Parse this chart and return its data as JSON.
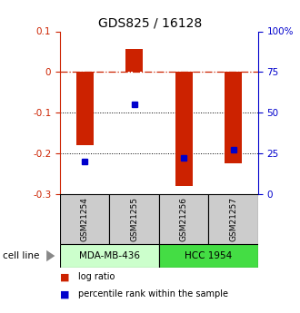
{
  "title": "GDS825 / 16128",
  "samples": [
    "GSM21254",
    "GSM21255",
    "GSM21256",
    "GSM21257"
  ],
  "log_ratios": [
    -0.18,
    0.057,
    -0.28,
    -0.225
  ],
  "percentile_ranks": [
    20,
    55,
    22,
    27
  ],
  "cell_lines": [
    {
      "name": "MDA-MB-436",
      "indices": [
        0,
        1
      ],
      "color": "#ccffcc"
    },
    {
      "name": "HCC 1954",
      "indices": [
        2,
        3
      ],
      "color": "#44dd44"
    }
  ],
  "ylim_left": [
    -0.3,
    0.1
  ],
  "ylim_right": [
    0,
    100
  ],
  "bar_color": "#cc2200",
  "square_color": "#0000cc",
  "background_color": "#ffffff",
  "left_axis_color": "#cc2200",
  "right_axis_color": "#0000cc",
  "label_log_ratio": "log ratio",
  "label_percentile": "percentile rank within the sample",
  "bar_width": 0.35,
  "sample_box_color": "#cccccc"
}
